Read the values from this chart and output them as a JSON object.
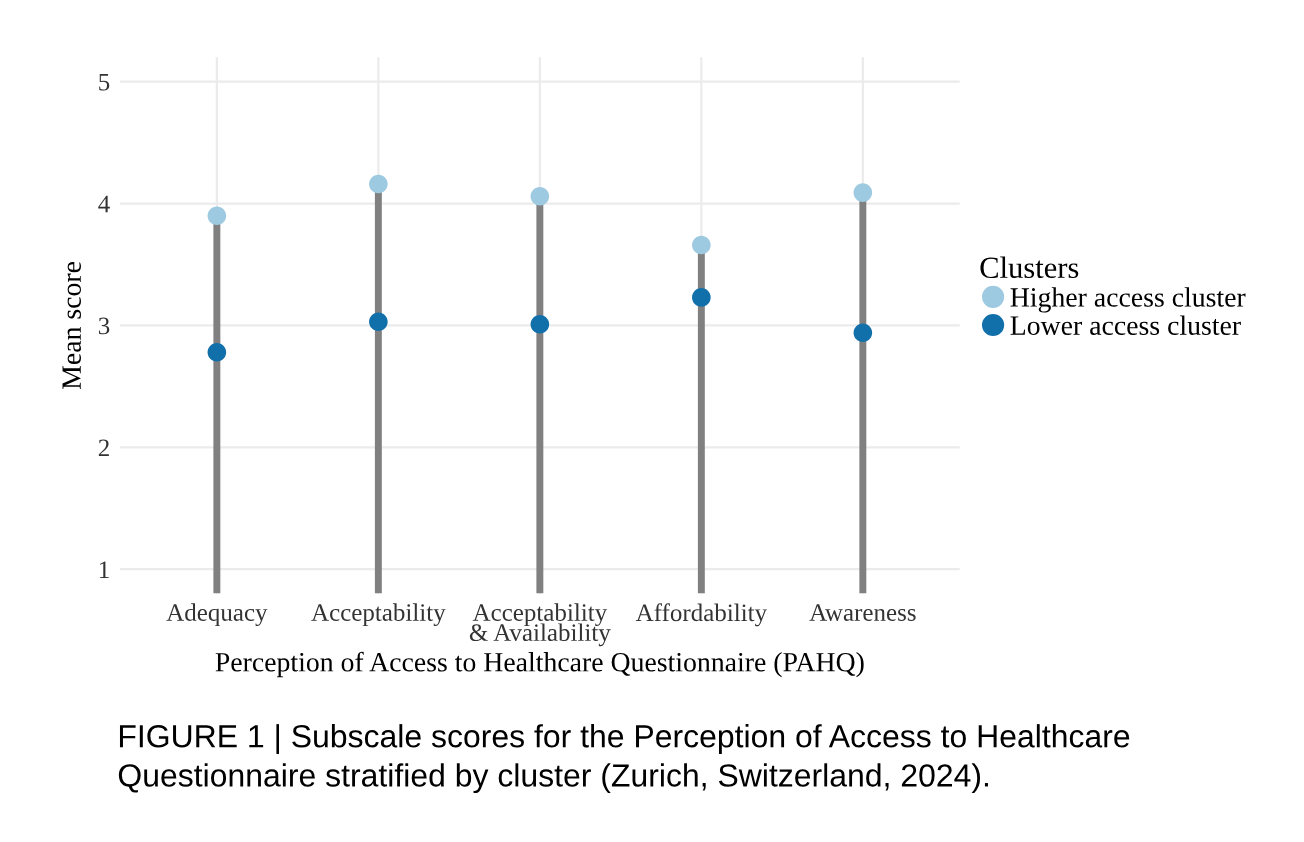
{
  "chart_data": {
    "type": "lollipop",
    "xlabel": "Perception of Access to Healthcare Questionnaire (PAHQ)",
    "ylabel": "Mean score",
    "legend_title": "Clusters",
    "categories": [
      "Adequacy",
      "Acceptability",
      "Acceptability\n& Availability",
      "Affordability",
      "Awareness"
    ],
    "series": [
      {
        "name": "Higher access cluster",
        "color": "#9ecae1",
        "values": [
          3.9,
          4.16,
          4.06,
          3.66,
          4.09
        ]
      },
      {
        "name": "Lower access cluster",
        "color": "#1170aa",
        "values": [
          2.78,
          3.03,
          3.01,
          3.23,
          2.94
        ]
      }
    ],
    "ylim": [
      0.8,
      5.2
    ],
    "yticks": [
      1,
      2,
      3,
      4,
      5
    ],
    "grid": true,
    "legend": "right",
    "marker": "circle",
    "annotations": [
      "FIGURE 1 | Subscale scores for the Perception of Access to Healthcare Questionnaire stratified by cluster (Zurich, Switzerland, 2024)."
    ]
  }
}
